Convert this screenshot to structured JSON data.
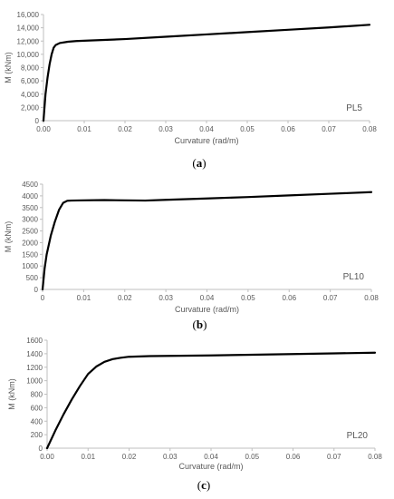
{
  "chart_data": [
    {
      "type": "line",
      "panel_label": "PL5",
      "caption": {
        "open": "(",
        "letter": "a",
        "close": ")"
      },
      "xlabel": "Curvature (rad/m)",
      "ylabel": "M (kNm)",
      "xlim": [
        0,
        0.08
      ],
      "ylim": [
        0,
        16000
      ],
      "x_ticks": [
        "0.00",
        "0.01",
        "0.02",
        "0.03",
        "0.04",
        "0.05",
        "0.06",
        "0.07",
        "0.08"
      ],
      "y_ticks": [
        "0",
        "2,000",
        "4,000",
        "6,000",
        "8,000",
        "10,000",
        "12,000",
        "14,000",
        "16,000"
      ],
      "grid": false,
      "series": [
        {
          "x": [
            0,
            0.0005,
            0.001,
            0.0015,
            0.002,
            0.0025,
            0.003,
            0.004,
            0.006,
            0.008,
            0.01,
            0.02,
            0.03,
            0.04,
            0.05,
            0.06,
            0.07,
            0.08
          ],
          "y": [
            0,
            4000,
            6500,
            8500,
            10000,
            11000,
            11400,
            11700,
            11900,
            12000,
            12050,
            12300,
            12650,
            13000,
            13350,
            13700,
            14050,
            14450
          ]
        }
      ]
    },
    {
      "type": "line",
      "panel_label": "PL10",
      "caption": {
        "open": "(",
        "letter": "b",
        "close": ")"
      },
      "xlabel": "Curvature (rad/m)",
      "ylabel": "M (kNm)",
      "xlim": [
        0,
        0.08
      ],
      "ylim": [
        0,
        4500
      ],
      "x_ticks": [
        "0",
        "0.01",
        "0.02",
        "0.03",
        "0.04",
        "0.05",
        "0.06",
        "0.07",
        "0.08"
      ],
      "y_ticks": [
        "0",
        "500",
        "1000",
        "1500",
        "2000",
        "2500",
        "3000",
        "3500",
        "4000",
        "4500"
      ],
      "grid": false,
      "series": [
        {
          "x": [
            0,
            0.0005,
            0.001,
            0.002,
            0.003,
            0.004,
            0.005,
            0.006,
            0.007,
            0.01,
            0.015,
            0.02,
            0.025,
            0.03,
            0.04,
            0.05,
            0.06,
            0.07,
            0.08
          ],
          "y": [
            0,
            900,
            1500,
            2300,
            2900,
            3400,
            3700,
            3790,
            3800,
            3810,
            3820,
            3810,
            3800,
            3830,
            3890,
            3950,
            4020,
            4090,
            4160
          ]
        }
      ]
    },
    {
      "type": "line",
      "panel_label": "PL20",
      "caption": {
        "open": "(",
        "letter": "c",
        "close": ")"
      },
      "xlabel": "Curvature (rad/m)",
      "ylabel": "M (kNm)",
      "xlim": [
        0,
        0.08
      ],
      "ylim": [
        0,
        1600
      ],
      "x_ticks": [
        "0.00",
        "0.01",
        "0.02",
        "0.03",
        "0.04",
        "0.05",
        "0.06",
        "0.07",
        "0.08"
      ],
      "y_ticks": [
        "0",
        "200",
        "400",
        "600",
        "800",
        "1000",
        "1200",
        "1400",
        "1600"
      ],
      "grid": false,
      "series": [
        {
          "x": [
            0,
            0.002,
            0.004,
            0.006,
            0.008,
            0.01,
            0.012,
            0.014,
            0.016,
            0.018,
            0.02,
            0.025,
            0.03,
            0.04,
            0.05,
            0.06,
            0.07,
            0.08
          ],
          "y": [
            0,
            260,
            500,
            720,
            920,
            1100,
            1210,
            1280,
            1320,
            1340,
            1355,
            1365,
            1368,
            1375,
            1385,
            1395,
            1405,
            1415
          ]
        }
      ]
    }
  ]
}
